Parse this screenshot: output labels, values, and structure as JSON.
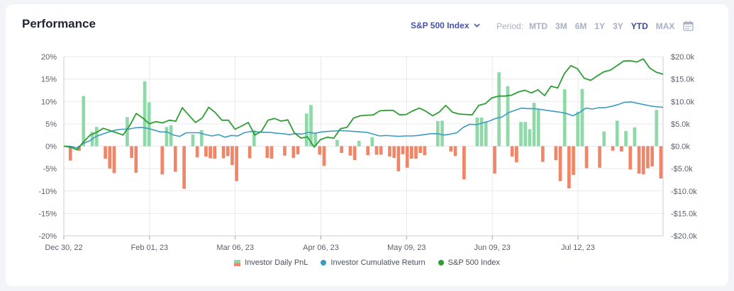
{
  "header": {
    "title": "Performance",
    "benchmark_label": "S&P 500 Index",
    "period_label": "Period:",
    "periods": [
      "MTD",
      "3M",
      "6M",
      "1Y",
      "3Y",
      "YTD",
      "MAX"
    ],
    "active_period": "YTD"
  },
  "chart_data": {
    "type": "bar",
    "x_ticks": [
      "Dec 30, 22",
      "Feb 01, 23",
      "Mar 06, 23",
      "Apr 06, 23",
      "May 09, 23",
      "Jun 09, 23",
      "Jul 12, 23"
    ],
    "y_left_ticks": [
      "20%",
      "15%",
      "10%",
      "5%",
      "0%",
      "-5%",
      "-10%",
      "-15%",
      "-20%"
    ],
    "y_right_ticks": [
      "$20.0k",
      "$15.0k",
      "$10.0k",
      "$5.0k",
      "$0.0k",
      "-$5.0k",
      "-$10.0k",
      "-$15.0k",
      "-$20.0k"
    ],
    "ylim_left": [
      -20,
      20
    ],
    "ylim_right": [
      -20000,
      20000
    ],
    "grid": true,
    "legend_position": "bottom",
    "series": [
      {
        "name": "Investor Daily PnL",
        "type": "bar",
        "axis": "right",
        "color_positive": "#8fd9a8",
        "color_negative": "#f08567",
        "values": [
          0,
          -3200,
          0,
          -1000,
          11200,
          0,
          3200,
          4300,
          0,
          -2800,
          -5000,
          -6000,
          0,
          0,
          6500,
          -2600,
          -5900,
          0,
          14500,
          9800,
          0,
          0,
          -6300,
          4300,
          4700,
          -5700,
          0,
          -9500,
          0,
          2600,
          -2500,
          3600,
          -2300,
          -2700,
          -2800,
          0,
          -2700,
          -2200,
          -4200,
          -7800,
          0,
          0,
          -2700,
          3600,
          0,
          0,
          -2600,
          -2800,
          0,
          0,
          -2100,
          0,
          -2600,
          -1800,
          0,
          7300,
          9200,
          2900,
          -1900,
          -4400,
          0,
          0,
          1400,
          -1500,
          0,
          -2100,
          -3100,
          1200,
          0,
          -2000,
          2000,
          -1900,
          -1900,
          0,
          -2300,
          -2600,
          -5600,
          -1800,
          -4800,
          -2800,
          -2800,
          -1500,
          -2000,
          0,
          0,
          5600,
          5700,
          0,
          -1200,
          -2200,
          0,
          -7400,
          0,
          0,
          6400,
          6400,
          5500,
          0,
          -6100,
          16500,
          0,
          13400,
          -2300,
          -3600,
          5400,
          5400,
          3800,
          9700,
          8200,
          -3500,
          0,
          0,
          -3100,
          -7800,
          12700,
          -9400,
          -6400,
          7700,
          12800,
          -4900,
          0,
          0,
          -4800,
          3300,
          0,
          -1000,
          5700,
          -1200,
          3400,
          -5200,
          4200,
          -6100,
          -6300,
          -4900,
          -4500,
          8100,
          -7200
        ]
      },
      {
        "name": "Investor Cumulative Return",
        "type": "line",
        "axis": "left",
        "color": "#3b9cbf",
        "values": [
          0,
          0,
          -0.4,
          0.6,
          1.2,
          2.2,
          2.7,
          3.2,
          3.6,
          3.8,
          3.8,
          4.1,
          4.2,
          4.0,
          3.6,
          3.2,
          3.2,
          2.5,
          2.2,
          3.0,
          3.0,
          3.0,
          2.6,
          2.3,
          2.6,
          2.0,
          2.4,
          2.3,
          3.0,
          3.3,
          3.2,
          3.1,
          3.1,
          2.9,
          2.8,
          2.6,
          2.8,
          2.7,
          3.1,
          2.9,
          3.2,
          3.3,
          3.4,
          3.5,
          3.4,
          3.3,
          3.2,
          3.1,
          2.7,
          2.3,
          2.4,
          2.3,
          2.2,
          2.3,
          2.3,
          2.4,
          2.6,
          2.8,
          2.8,
          2.5,
          2.7,
          3.0,
          4.2,
          4.9,
          4.8,
          5.2,
          5.6,
          6.2,
          6.5,
          7.5,
          8.0,
          8.5,
          8.4,
          8.4,
          8.2,
          8.0,
          7.8,
          7.6,
          7.3,
          6.8,
          7.5,
          8.5,
          8.3,
          8.6,
          8.6,
          8.9,
          9.3,
          9.8,
          9.9,
          9.6,
          9.3,
          9.0,
          8.8,
          8.7
        ]
      },
      {
        "name": "S&P 500 Index",
        "type": "line",
        "axis": "left",
        "color": "#2f9c34",
        "values": [
          0,
          -0.2,
          -0.8,
          1.0,
          2.5,
          3.1,
          4.0,
          3.5,
          3.0,
          2.5,
          4.6,
          7.3,
          6.3,
          5.0,
          5.5,
          5.2,
          5.8,
          5.6,
          8.6,
          6.9,
          5.3,
          6.3,
          8.7,
          7.5,
          5.8,
          5.8,
          3.8,
          4.5,
          5.3,
          2.5,
          3.3,
          5.8,
          6.2,
          5.6,
          5.9,
          3.0,
          1.8,
          2.1,
          -0.2,
          1.5,
          2.0,
          1.8,
          3.9,
          4.2,
          6.3,
          6.8,
          6.9,
          7.0,
          7.9,
          8.0,
          8.0,
          7.0,
          7.1,
          7.9,
          8.5,
          7.8,
          6.8,
          7.6,
          9.1,
          7.6,
          7.2,
          7.1,
          7.0,
          9.1,
          9.5,
          10.8,
          11.2,
          11.2,
          11.4,
          12.1,
          12.5,
          11.9,
          12.6,
          11.3,
          13.4,
          13.0,
          16.2,
          18.0,
          17.3,
          15.2,
          14.7,
          15.7,
          16.6,
          17.0,
          18.0,
          19.0,
          19.1,
          18.8,
          19.5,
          17.4,
          16.5,
          16.1
        ]
      }
    ]
  }
}
